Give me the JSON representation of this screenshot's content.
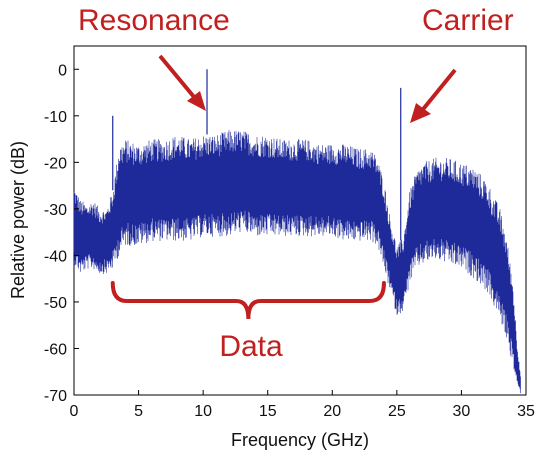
{
  "chart_data": {
    "type": "line",
    "xlabel": "Frequency (GHz)",
    "ylabel": "Relative power (dB)",
    "xlim": [
      0,
      35
    ],
    "ylim": [
      -70,
      5
    ],
    "xticks": [
      "0",
      "5",
      "10",
      "15",
      "20",
      "25",
      "30",
      "35"
    ],
    "yticks": [
      "0",
      "-10",
      "-20",
      "-30",
      "-40",
      "-50",
      "-60",
      "-70"
    ],
    "grid": false,
    "series": [
      {
        "color": "#1f2a9a",
        "x": [
          0,
          0.5,
          1,
          1.5,
          2,
          2.5,
          3,
          3.5,
          4,
          5,
          6,
          7,
          8,
          9,
          10,
          11,
          12,
          13,
          14,
          15,
          16,
          17,
          18,
          19,
          20,
          21,
          22,
          23,
          23.5,
          24,
          24.5,
          25,
          25.5,
          26,
          26.5,
          27,
          28,
          29,
          30,
          31,
          32,
          33,
          33.5,
          34,
          34.3,
          34.6
        ],
        "upper": [
          -25,
          -28,
          -29,
          -28,
          -30,
          -30,
          -26,
          -16,
          -15,
          -16,
          -15,
          -15,
          -14,
          -15,
          -14,
          -14,
          -13,
          -13,
          -14,
          -14,
          -15,
          -15,
          -15,
          -16,
          -16,
          -16,
          -17,
          -17,
          -19,
          -24,
          -32,
          -38,
          -36,
          -26,
          -22,
          -20,
          -19,
          -19,
          -20,
          -21,
          -24,
          -30,
          -36,
          -46,
          -58,
          -66
        ],
        "lower": [
          -42,
          -44,
          -43,
          -43,
          -44,
          -44,
          -43,
          -40,
          -38,
          -38,
          -37,
          -37,
          -37,
          -37,
          -36,
          -36,
          -36,
          -35,
          -36,
          -36,
          -36,
          -36,
          -36,
          -36,
          -36,
          -37,
          -37,
          -37,
          -38,
          -43,
          -48,
          -53,
          -52,
          -46,
          -43,
          -42,
          -41,
          -42,
          -43,
          -45,
          -48,
          -54,
          -58,
          -64,
          -68,
          -70
        ]
      }
    ],
    "spikes": [
      {
        "x": 10.3,
        "y": 0
      },
      {
        "x": 25.3,
        "y": -4
      },
      {
        "x": 3.0,
        "y": -10
      }
    ],
    "annotations": {
      "resonance": {
        "text": "Resonance",
        "color": "#c0201f"
      },
      "carrier": {
        "text": "Carrier",
        "color": "#c0201f"
      },
      "data": {
        "text": "Data",
        "color": "#c0201f",
        "x_start": 3.0,
        "x_end": 24.0
      }
    }
  }
}
